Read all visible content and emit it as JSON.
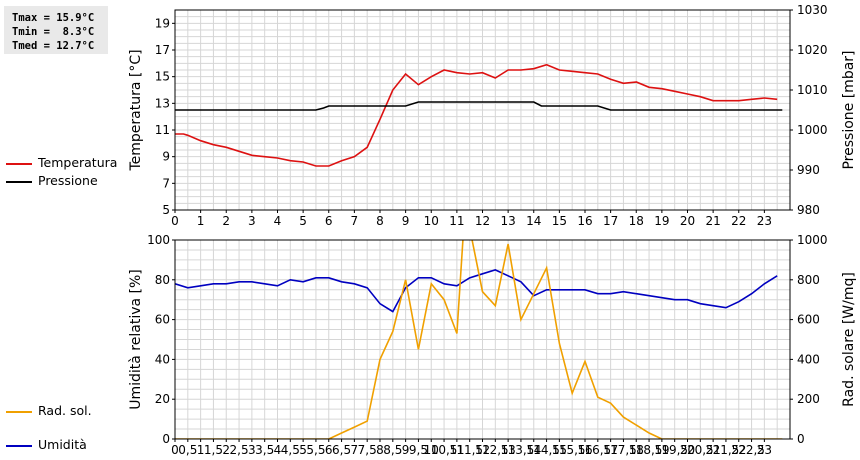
{
  "stats": [
    "Tmax = 15.9°C",
    "Tmin =  8.3°C",
    "Tmed = 12.7°C"
  ],
  "colors": {
    "temperature": "#dd1111",
    "pressure": "#000000",
    "humidity": "#0000c0",
    "solar": "#f0a000",
    "grid": "#d6d6d6"
  },
  "chart_data": [
    {
      "type": "line",
      "ylabel": "Temperatura [°C]",
      "y2label": "Pressione [mbar]",
      "xlim": [
        0,
        24
      ],
      "ylim": [
        5,
        20
      ],
      "y2lim": [
        980,
        1030
      ],
      "x_ticks": [
        0,
        1,
        2,
        3,
        4,
        5,
        6,
        7,
        8,
        9,
        10,
        11,
        12,
        13,
        14,
        15,
        16,
        17,
        18,
        19,
        20,
        21,
        22,
        23
      ],
      "y_ticks": [
        5,
        7,
        9,
        11,
        13,
        15,
        17,
        19
      ],
      "y2_ticks": [
        980,
        990,
        1000,
        1010,
        1020,
        1030
      ],
      "grid": true,
      "legend_position": "left",
      "series": [
        {
          "name": "Temperatura",
          "axis": "left",
          "color": "#dd1111",
          "x": [
            0,
            0.33,
            0.5,
            1,
            1.5,
            2,
            2.5,
            3,
            3.5,
            4,
            4.5,
            5,
            5.5,
            6,
            6.5,
            7,
            7.5,
            8,
            8.5,
            9,
            9.5,
            10,
            10.5,
            11,
            11.5,
            12,
            12.5,
            13,
            13.5,
            14,
            14.5,
            15,
            15.5,
            16,
            16.5,
            17,
            17.5,
            18,
            18.5,
            19,
            19.5,
            20,
            20.5,
            21,
            21.5,
            22,
            22.5,
            23,
            23.5
          ],
          "values": [
            10.7,
            10.7,
            10.6,
            10.2,
            9.9,
            9.7,
            9.4,
            9.1,
            9.0,
            8.9,
            8.7,
            8.6,
            8.3,
            8.3,
            8.7,
            9.0,
            9.7,
            11.8,
            14.0,
            15.2,
            14.4,
            15.0,
            15.5,
            15.3,
            15.2,
            15.3,
            14.9,
            15.5,
            15.5,
            15.6,
            15.9,
            15.5,
            15.4,
            15.3,
            15.2,
            14.8,
            14.5,
            14.6,
            14.2,
            14.1,
            13.9,
            13.7,
            13.5,
            13.2,
            13.2,
            13.2,
            13.3,
            13.4,
            13.3
          ]
        },
        {
          "name": "Pressione",
          "axis": "right",
          "color": "#000000",
          "x": [
            0,
            5.5,
            5.8,
            6,
            8.5,
            9,
            9.5,
            14,
            14.3,
            16.5,
            17,
            23.7
          ],
          "values": [
            1005,
            1005,
            1005.5,
            1006,
            1006,
            1006,
            1007,
            1007,
            1006,
            1006,
            1005,
            1005
          ]
        }
      ]
    },
    {
      "type": "line",
      "ylabel": "Umidità relativa [%]",
      "y2label": "Rad. solare [W/mq]",
      "xlim": [
        0,
        24
      ],
      "ylim": [
        0,
        100
      ],
      "y2lim": [
        0,
        1000
      ],
      "x_ticks": [
        0,
        0.5,
        1,
        1.5,
        2,
        2.5,
        3,
        3.5,
        4,
        4.5,
        5,
        5.5,
        6,
        6.5,
        7,
        7.5,
        8,
        8.5,
        9,
        9.5,
        10,
        10.5,
        11,
        11.5,
        12,
        12.5,
        13,
        13.5,
        14,
        14.5,
        15,
        15.5,
        16,
        16.5,
        17,
        17.5,
        18,
        18.5,
        19,
        19.5,
        20,
        20.5,
        21,
        21.5,
        22,
        22.5,
        23
      ],
      "x_tick_labels": [
        "0",
        "0,5",
        "1",
        "1,5",
        "2",
        "2,5",
        "3",
        "3,5",
        "4",
        "4,5",
        "5",
        "5,5",
        "6",
        "6,5",
        "7",
        "7,5",
        "8",
        "8,5",
        "9",
        "9,5",
        "10",
        "10,5",
        "11",
        "11,5",
        "12",
        "12,5",
        "13",
        "13,5",
        "14",
        "14,5",
        "15",
        "15,5",
        "16",
        "16,5",
        "17",
        "17,5",
        "18",
        "18,5",
        "19",
        "19,5",
        "20",
        "20,5",
        "21",
        "21,5",
        "22",
        "22,5",
        "23"
      ],
      "y_ticks": [
        0,
        20,
        40,
        60,
        80,
        100
      ],
      "y2_ticks": [
        0,
        200,
        400,
        600,
        800,
        1000
      ],
      "grid": true,
      "legend_position": "left",
      "series": [
        {
          "name": "Umidità",
          "axis": "left",
          "color": "#0000c0",
          "x": [
            0,
            0.5,
            1,
            1.5,
            2,
            2.5,
            3,
            3.5,
            4,
            4.5,
            5,
            5.5,
            6,
            6.5,
            7,
            7.5,
            8,
            8.5,
            9,
            9.5,
            10,
            10.5,
            11,
            11.5,
            12,
            12.5,
            13,
            13.5,
            14,
            14.5,
            15,
            15.5,
            16,
            16.5,
            17,
            17.5,
            18,
            18.5,
            19,
            19.5,
            20,
            20.5,
            21,
            21.5,
            22,
            22.5,
            23,
            23.5
          ],
          "values": [
            78,
            76,
            77,
            78,
            78,
            79,
            79,
            78,
            77,
            80,
            79,
            81,
            81,
            79,
            78,
            76,
            68,
            64,
            76,
            81,
            81,
            78,
            77,
            81,
            83,
            85,
            82,
            79,
            72,
            75,
            75,
            75,
            75,
            73,
            73,
            74,
            73,
            72,
            71,
            70,
            70,
            68,
            67,
            66,
            69,
            73,
            78,
            82
          ]
        },
        {
          "name": "Rad. sol.",
          "axis": "right",
          "color": "#f0a000",
          "x": [
            0,
            6,
            6.5,
            7,
            7.5,
            8,
            8.5,
            9,
            9.5,
            10,
            10.5,
            11,
            11.25,
            11.5,
            12,
            12.5,
            13,
            13.5,
            14,
            14.5,
            15,
            15.5,
            16,
            16.5,
            17,
            17.5,
            18,
            18.5,
            19,
            19.5,
            20,
            21,
            22,
            23,
            23.7
          ],
          "values": [
            0,
            0,
            30,
            60,
            90,
            400,
            540,
            800,
            450,
            780,
            700,
            530,
            1030,
            1060,
            740,
            670,
            980,
            600,
            730,
            860,
            480,
            230,
            390,
            210,
            180,
            110,
            70,
            30,
            0,
            0,
            0,
            0,
            0,
            0,
            0
          ]
        }
      ]
    }
  ]
}
